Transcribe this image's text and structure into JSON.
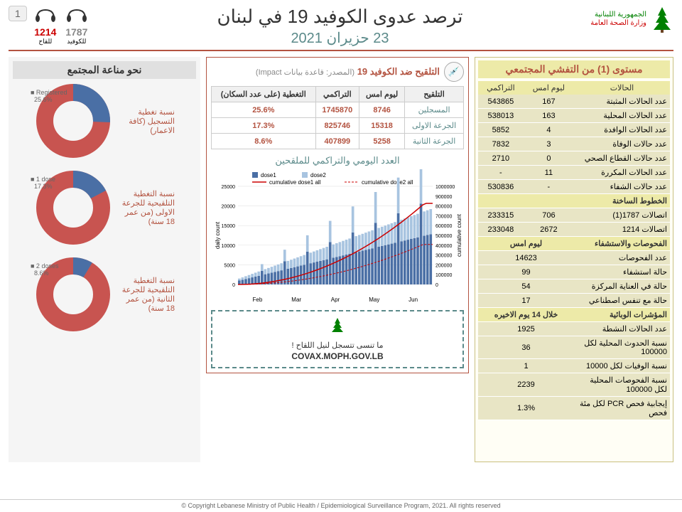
{
  "header": {
    "org_line1": "الجمهورية اللبنانية",
    "org_line2": "وزارة الصحة العامة",
    "title": "ترصد عدوى الكوفيد 19 في لبنان",
    "date": "23 حزيران 2021",
    "hotline1_num": "1787",
    "hotline1_label": "للكوفيد",
    "hotline2_num": "1214",
    "hotline2_label": "للقاح",
    "page_num": "1"
  },
  "community": {
    "title": "مستوى (1) من التفشي المجتمعي",
    "cases_header": "الحالات",
    "col_yesterday": "ليوم امس",
    "col_cumulative": "التراكمي",
    "rows": [
      {
        "label": "عدد الحالات المثبتة",
        "yesterday": "167",
        "cumulative": "543865"
      },
      {
        "label": "عدد الحالات المحلية",
        "yesterday": "163",
        "cumulative": "538013"
      },
      {
        "label": "عدد الحالات الوافدة",
        "yesterday": "4",
        "cumulative": "5852"
      },
      {
        "label": "عدد حالات الوفاة",
        "yesterday": "3",
        "cumulative": "7832"
      },
      {
        "label": "عدد حالات القطاع الصحي",
        "yesterday": "0",
        "cumulative": "2710"
      },
      {
        "label": "عدد الحالات المكررة",
        "yesterday": "11",
        "cumulative": "-"
      },
      {
        "label": "عدد حالات الشفاء",
        "yesterday": "-",
        "cumulative": "530836"
      }
    ],
    "hotlines_header": "الخطوط الساخنة",
    "hotline_rows": [
      {
        "label": "اتصالات 1787(1)",
        "yesterday": "706",
        "cumulative": "233315"
      },
      {
        "label": "اتصالات 1214",
        "yesterday": "2672",
        "cumulative": "233048"
      }
    ],
    "tests_header": "الفحوصات والاستشفاء",
    "tests_col": "ليوم امس",
    "test_rows": [
      {
        "label": "عدد الفحوصات",
        "val": "14623"
      },
      {
        "label": "حالة استشفاء",
        "val": "99"
      },
      {
        "label": "حالة في العناية المركزة",
        "val": "54"
      },
      {
        "label": "حالة مع تنفس اصطناعي",
        "val": "17"
      }
    ],
    "epi_header": "المؤشرات الوبائية",
    "epi_col": "خلال 14 يوم الاخيره",
    "epi_rows": [
      {
        "label": "عدد الحالات النشطة",
        "val": "1925"
      },
      {
        "label": "نسبة الحدوث المحلية لكل 100000",
        "val": "36"
      },
      {
        "label": "نسبة الوفيات لكل 10000",
        "val": "1"
      },
      {
        "label": "نسبة الفحوصات  المحلية لكل 100000",
        "val": "2239"
      },
      {
        "label": "إيجابية فحص PCR لكل مئة فحص",
        "val": "1.3%"
      }
    ]
  },
  "vaccination": {
    "title": "التلقيح ضد الكوفيد 19",
    "source": "(المصدر: قاعدة بيانات Impact)",
    "th_vacc": "التلقيح",
    "th_yesterday": "ليوم امس",
    "th_cumulative": "التراكمي",
    "th_coverage": "التغطية (على عدد السكان)",
    "rows": [
      {
        "label": "المسجلين",
        "yesterday": "8746",
        "cumulative": "1745870",
        "coverage": "25.6%"
      },
      {
        "label": "الجرعة الاولى",
        "yesterday": "15318",
        "cumulative": "825746",
        "coverage": "17.3%"
      },
      {
        "label": "الجرعة الثانية",
        "yesterday": "5258",
        "cumulative": "407899",
        "coverage": "8.6%"
      }
    ],
    "chart_title": "العدد اليومي والتراكمي للملقحين",
    "chart": {
      "legend": [
        "dose1",
        "dose2",
        "cumulative dose1 all",
        "cumulative dose2 all"
      ],
      "colors": {
        "dose1": "#4a6fa5",
        "dose2": "#a8c4e0",
        "cum1": "#c00",
        "cum2": "#c00"
      },
      "y_left_max": 25000,
      "y_left_step": 5000,
      "y_right_max": 1000000,
      "y_right_step": 100000,
      "x_months": [
        "Feb",
        "Mar",
        "Apr",
        "May",
        "Jun"
      ]
    },
    "covax_text": "ما تنسى تتسجل لنيل اللقاح !",
    "covax_url": "COVAX.MOPH.GOV.LB"
  },
  "herd": {
    "title": "نحو مناعة المجتمع",
    "donuts": [
      {
        "label": "نسبة تغطية التسجيل (كافة الاعمار)",
        "legend": "Registered",
        "pct": 25.6,
        "pct_str": "25.6%"
      },
      {
        "label": "نسبة التغطية التلقيحية للجرعة الاولى (من عمر 18 سنة)",
        "legend": "1 dose",
        "pct": 17.3,
        "pct_str": "17.3%"
      },
      {
        "label": "نسبة التغطية التلقيحية للجرعة الثانية (من عمر 18 سنة)",
        "legend": "2 doses",
        "pct": 8.6,
        "pct_str": "8.6%"
      }
    ],
    "colors": {
      "filled": "#4a6fa5",
      "empty": "#c85450"
    }
  },
  "footer": "© Copyright Lebanese Ministry of Public Health / Epidemiological Surveillance Program, 2021. All rights reserved"
}
